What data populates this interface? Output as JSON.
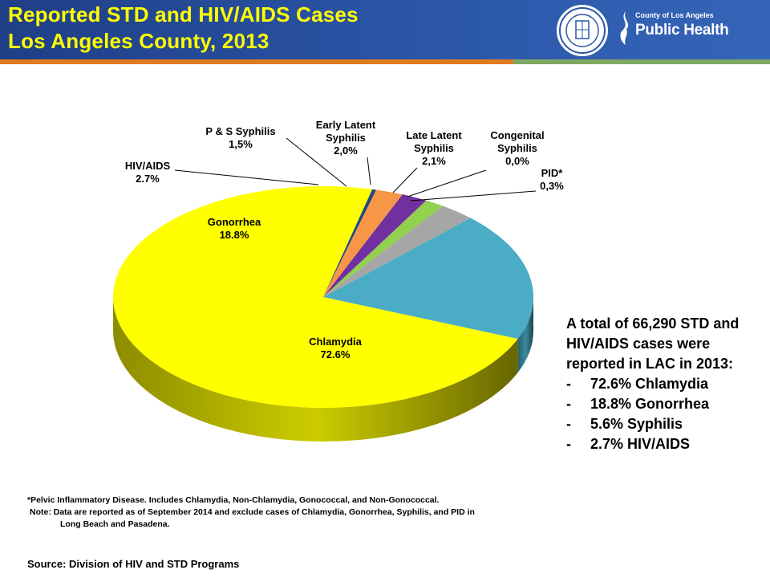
{
  "header": {
    "title_line1": "Reported STD and HIV/AIDS Cases",
    "title_line2": "Los Angeles County, 2013",
    "logo_small": "County of Los Angeles",
    "logo_big": "Public Health"
  },
  "colors": {
    "header_bg": "#2b56a8",
    "title": "#ffff00",
    "stripe_orange": "#e07b1f",
    "stripe_green": "#7fa860"
  },
  "chart_data": {
    "type": "pie",
    "title": "",
    "slices": [
      {
        "name": "Chlamydia",
        "value": 72.6,
        "label": "Chlamydia\n72.6%",
        "color": "#ffff00"
      },
      {
        "name": "Gonorrhea",
        "value": 18.8,
        "label": "Gonorrhea\n18.8%",
        "color": "#4bacc6"
      },
      {
        "name": "HIV/AIDS",
        "value": 2.7,
        "label": "HIV/AIDS\n2.7%",
        "color": "#a6a6a6"
      },
      {
        "name": "P & S Syphilis",
        "value": 1.5,
        "label": "P & S Syphilis\n1,5%",
        "color": "#92d050"
      },
      {
        "name": "Early Latent Syphilis",
        "value": 2.0,
        "label": "Early Latent\nSyphilis\n2,0%",
        "color": "#7030a0"
      },
      {
        "name": "Late Latent Syphilis",
        "value": 2.1,
        "label": "Late Latent\nSyphilis\n2,1%",
        "color": "#f79646"
      },
      {
        "name": "Congenital Syphilis",
        "value": 0.0,
        "label": "Congenital\nSyphilis\n0,0%",
        "color": "#c0504d"
      },
      {
        "name": "PID*",
        "value": 0.3,
        "label": "PID*\n0,3%",
        "color": "#1f497d"
      }
    ]
  },
  "summary": {
    "intro": "A total of 66,290 STD and HIV/AIDS cases were reported in LAC in 2013:",
    "items": [
      "72.6% Chlamydia",
      "18.8% Gonorrhea",
      "5.6% Syphilis",
      "2.7% HIV/AIDS"
    ]
  },
  "footnotes": {
    "pid": "*Pelvic Inflammatory Disease. Includes Chlamydia, Non-Chlamydia, Gonococcal, and Non-Gonococcal.",
    "note_line1": "Note: Data are reported as of September 2014 and exclude cases of Chlamydia, Gonorrhea, Syphilis, and PID in",
    "note_line2": "Long Beach and Pasadena.",
    "source": "Source: Division of HIV and STD Programs"
  }
}
